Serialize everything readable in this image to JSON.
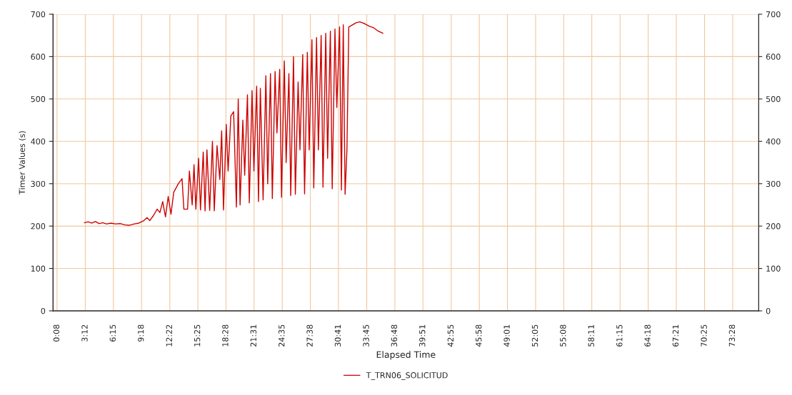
{
  "chart_data": {
    "type": "line",
    "xlabel": "Elapsed Time",
    "ylabel": "Timer Values (s)",
    "xlim": [
      -0.3,
      76.3
    ],
    "ylim": [
      0,
      700
    ],
    "y2lim": [
      0,
      700
    ],
    "xticks": [
      {
        "value": 0.13,
        "label": "0:08"
      },
      {
        "value": 3.2,
        "label": "3:12"
      },
      {
        "value": 6.25,
        "label": "6:15"
      },
      {
        "value": 9.3,
        "label": "9:18"
      },
      {
        "value": 12.37,
        "label": "12:22"
      },
      {
        "value": 15.42,
        "label": "15:25"
      },
      {
        "value": 18.47,
        "label": "18:28"
      },
      {
        "value": 21.52,
        "label": "21:31"
      },
      {
        "value": 24.58,
        "label": "24:35"
      },
      {
        "value": 27.63,
        "label": "27:38"
      },
      {
        "value": 30.68,
        "label": "30:41"
      },
      {
        "value": 33.75,
        "label": "33:45"
      },
      {
        "value": 36.8,
        "label": "36:48"
      },
      {
        "value": 39.85,
        "label": "39:51"
      },
      {
        "value": 42.92,
        "label": "42:55"
      },
      {
        "value": 45.97,
        "label": "45:58"
      },
      {
        "value": 49.02,
        "label": "49:01"
      },
      {
        "value": 52.08,
        "label": "52:05"
      },
      {
        "value": 55.13,
        "label": "55:08"
      },
      {
        "value": 58.18,
        "label": "58:11"
      },
      {
        "value": 61.25,
        "label": "61:15"
      },
      {
        "value": 64.3,
        "label": "64:18"
      },
      {
        "value": 67.35,
        "label": "67:21"
      },
      {
        "value": 70.42,
        "label": "70:25"
      },
      {
        "value": 73.47,
        "label": "73:28"
      }
    ],
    "yticks": [
      0,
      100,
      200,
      300,
      400,
      500,
      600,
      700
    ],
    "y2ticks": [
      0,
      100,
      200,
      300,
      400,
      500,
      600,
      700
    ],
    "grid": true,
    "legend": "bottom",
    "marker": "none",
    "line_style": "solid",
    "series": [
      {
        "name": "T_TRN06_SOLICITUD",
        "color": "#cc0000",
        "x": [
          3.1,
          3.5,
          3.9,
          4.3,
          4.7,
          5.1,
          5.5,
          6.0,
          6.5,
          7.0,
          7.5,
          8.0,
          8.5,
          9.0,
          9.5,
          9.9,
          10.2,
          10.6,
          11.0,
          11.3,
          11.6,
          11.9,
          12.2,
          12.5,
          12.8,
          13.3,
          13.7,
          13.9,
          14.3,
          14.5,
          14.8,
          15.0,
          15.2,
          15.5,
          15.7,
          16.0,
          16.2,
          16.4,
          16.7,
          17.0,
          17.2,
          17.5,
          17.8,
          18.0,
          18.2,
          18.5,
          18.7,
          19.0,
          19.3,
          19.6,
          19.8,
          20.0,
          20.3,
          20.5,
          20.8,
          21.0,
          21.3,
          21.5,
          21.8,
          22.0,
          22.2,
          22.5,
          22.8,
          23.0,
          23.3,
          23.5,
          23.8,
          24.0,
          24.3,
          24.5,
          24.8,
          25.0,
          25.3,
          25.5,
          25.8,
          26.0,
          26.3,
          26.5,
          26.8,
          27.0,
          27.3,
          27.5,
          27.8,
          28.0,
          28.3,
          28.5,
          28.8,
          29.0,
          29.3,
          29.5,
          29.8,
          30.0,
          30.3,
          30.5,
          30.8,
          31.0,
          31.2,
          31.4,
          31.6,
          31.8,
          32.2,
          32.6,
          33.0,
          33.5,
          34.0,
          34.5,
          35.0,
          35.5
        ],
        "values": [
          208,
          210,
          207,
          211,
          206,
          208,
          205,
          207,
          205,
          206,
          203,
          202,
          205,
          207,
          212,
          220,
          213,
          225,
          240,
          232,
          258,
          222,
          270,
          228,
          280,
          300,
          312,
          240,
          240,
          330,
          250,
          345,
          240,
          360,
          238,
          375,
          236,
          380,
          237,
          400,
          236,
          390,
          310,
          425,
          238,
          440,
          330,
          460,
          470,
          245,
          500,
          250,
          450,
          320,
          510,
          255,
          520,
          330,
          530,
          258,
          525,
          262,
          555,
          300,
          560,
          265,
          565,
          420,
          570,
          268,
          590,
          350,
          560,
          272,
          600,
          275,
          540,
          380,
          605,
          276,
          610,
          380,
          640,
          290,
          645,
          380,
          650,
          292,
          655,
          360,
          660,
          288,
          665,
          480,
          670,
          285,
          675,
          275,
          380,
          670,
          675,
          680,
          682,
          678,
          672,
          668,
          660,
          655
        ]
      }
    ]
  }
}
